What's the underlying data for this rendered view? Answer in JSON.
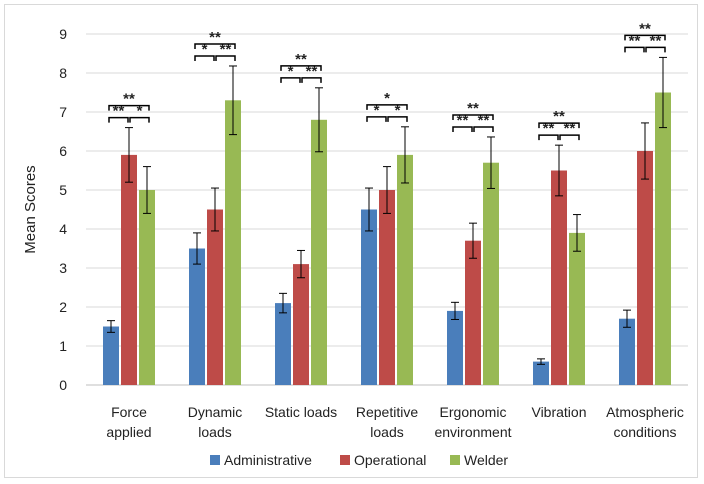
{
  "chart_data": {
    "type": "bar",
    "title": "",
    "xlabel": "",
    "ylabel": "Mean Scores",
    "ylim": [
      0,
      9
    ],
    "yticks": [
      "0",
      "1",
      "2",
      "3",
      "4",
      "5",
      "6",
      "7",
      "8",
      "9"
    ],
    "grid": true,
    "legend_position": "bottom",
    "categories": [
      [
        "Force",
        "applied"
      ],
      [
        "Dynamic",
        "loads"
      ],
      [
        "Static loads"
      ],
      [
        "Repetitive",
        "loads"
      ],
      [
        "Ergonomic",
        "environment"
      ],
      [
        "Vibration"
      ],
      [
        "Atmospheric",
        "conditions"
      ]
    ],
    "series": [
      {
        "name": "Administrative",
        "color": "#4a7ebb",
        "values": [
          1.5,
          3.5,
          2.1,
          4.5,
          1.9,
          0.6,
          1.7
        ],
        "error": [
          0.15,
          0.4,
          0.25,
          0.55,
          0.22,
          0.07,
          0.22
        ]
      },
      {
        "name": "Operational",
        "color": "#be4b48",
        "values": [
          5.9,
          4.5,
          3.1,
          5.0,
          3.7,
          5.5,
          6.0
        ],
        "error": [
          0.7,
          0.55,
          0.35,
          0.6,
          0.45,
          0.65,
          0.72
        ]
      },
      {
        "name": "Welder",
        "color": "#98b954",
        "values": [
          5.0,
          7.3,
          6.8,
          5.9,
          5.7,
          3.9,
          7.5
        ],
        "error": [
          0.6,
          0.88,
          0.82,
          0.72,
          0.66,
          0.47,
          0.9
        ]
      }
    ],
    "significance": [
      {
        "outer": "**",
        "left": "**",
        "right": "*"
      },
      {
        "outer": "**",
        "left": "*",
        "right": "**"
      },
      {
        "outer": "**",
        "left": "*",
        "right": "**"
      },
      {
        "outer": "*",
        "left": "*",
        "right": "*"
      },
      {
        "outer": "**",
        "left": "**",
        "right": "**"
      },
      {
        "outer": "**",
        "left": "**",
        "right": "**"
      },
      {
        "outer": "**",
        "left": "**",
        "right": "**"
      }
    ]
  }
}
